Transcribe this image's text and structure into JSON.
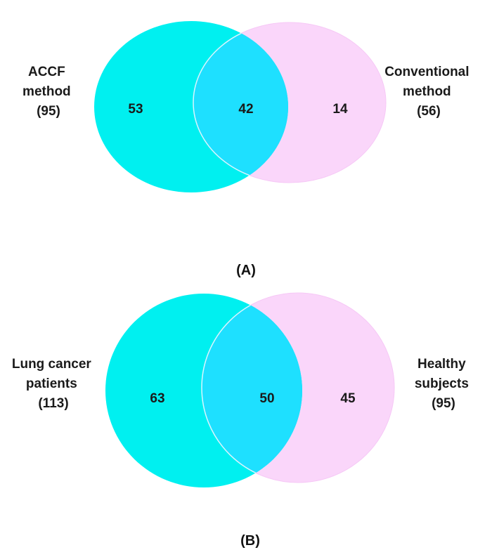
{
  "colors": {
    "set_left": "#00F0F0",
    "set_right": "#FAD6FA",
    "overlap": "#1EE0FF"
  },
  "diagram_a": {
    "caption": "(A)",
    "left_label": [
      "ACCF",
      "method",
      "(95)"
    ],
    "right_label": [
      "Conventional",
      "method",
      "(56)"
    ],
    "left_only": "53",
    "overlap": "42",
    "right_only": "14"
  },
  "diagram_b": {
    "caption": "(B)",
    "left_label": [
      "Lung cancer",
      "patients",
      "(113)"
    ],
    "right_label": [
      "Healthy",
      "subjects",
      "(95)"
    ],
    "left_only": "63",
    "overlap": "50",
    "right_only": "45"
  }
}
